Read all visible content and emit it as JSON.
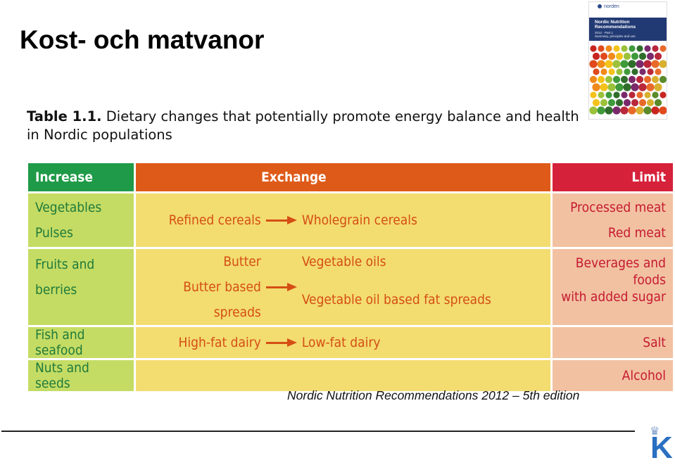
{
  "slide": {
    "title": "Kost- och matvanor",
    "caption_label": "Table 1.1.",
    "caption_text": " Dietary changes that potentially promote energy balance and health in Nordic populations",
    "source": "Nordic Nutrition Recommendations 2012 – 5th edition"
  },
  "book_cover": {
    "brand": "norden",
    "title": "Nordic Nutrition Recommendations",
    "subtitle": "2012 · Part 1",
    "subtitle2": "Summary, principles and use"
  },
  "table": {
    "headers": {
      "increase": "Increase",
      "exchange": "Exchange",
      "limit": "Limit"
    },
    "rows": [
      {
        "increase": [
          "Vegetables",
          "Pulses"
        ],
        "exchange_from": [
          "Refined cereals"
        ],
        "exchange_to": [
          "Wholegrain cereals"
        ],
        "limit": [
          "Processed meat",
          "Red meat"
        ]
      },
      {
        "increase": [
          "Fruits and berries"
        ],
        "exchange_from": [
          "Butter",
          "Butter based spreads"
        ],
        "exchange_to": [
          "Vegetable oils",
          "Vegetable oil based fat spreads"
        ],
        "limit": [
          "Beverages and foods",
          "with added sugar"
        ]
      },
      {
        "increase": [
          "Fish and seafood"
        ],
        "exchange_from": [
          "High-fat dairy"
        ],
        "exchange_to": [
          "Low-fat dairy"
        ],
        "limit": [
          "Salt"
        ]
      },
      {
        "increase": [
          "Nuts and seeds"
        ],
        "exchange_from": [],
        "exchange_to": [],
        "limit": [
          "Alcohol"
        ]
      }
    ]
  },
  "colors": {
    "increase_header": "#1f9a48",
    "exchange_header": "#de5a18",
    "limit_header": "#d6213a",
    "increase_cell": "#c4dc64",
    "exchange_cell": "#f3dc70",
    "limit_cell": "#f2c1a2"
  },
  "icons": {
    "arrow": "right-arrow-icon",
    "logo": "k-crown-logo"
  }
}
